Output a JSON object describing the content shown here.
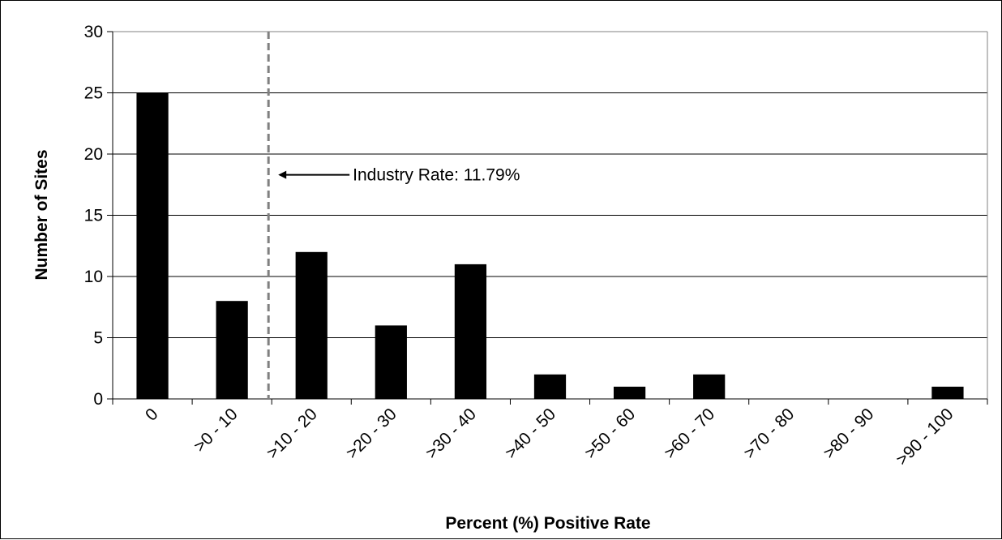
{
  "chart_data": {
    "type": "bar",
    "title": "",
    "xlabel": "Percent (%) Positive Rate",
    "ylabel": "Number of Sites",
    "categories": [
      "0",
      ">0 - 10",
      ">10 - 20",
      ">20 - 30",
      ">30 - 40",
      ">40 - 50",
      ">50 - 60",
      ">60 - 70",
      ">70 - 80",
      ">80 - 90",
      ">90 - 100"
    ],
    "values": [
      25,
      8,
      12,
      6,
      11,
      2,
      1,
      2,
      0,
      0,
      1
    ],
    "ylim": [
      0,
      30
    ],
    "yticks": [
      0,
      5,
      10,
      15,
      20,
      25,
      30
    ],
    "grid": true,
    "legend": "none",
    "bar_color": "#000000",
    "reference_line": {
      "x_value": 11.79,
      "style": "dashed",
      "color": "#808080",
      "label": "Industry Rate: 11.79%"
    }
  }
}
